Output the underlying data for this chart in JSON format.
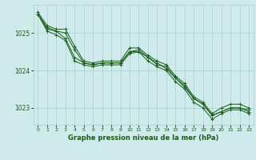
{
  "title": "Graphe pression niveau de la mer (hPa)",
  "background_color": "#ceeaea",
  "grid_color": "#aacece",
  "line_color": "#1a5c1a",
  "xlim": [
    -0.5,
    23.5
  ],
  "ylim": [
    1022.55,
    1025.75
  ],
  "yticks": [
    1023,
    1024,
    1025
  ],
  "xticks": [
    0,
    1,
    2,
    3,
    4,
    5,
    6,
    7,
    8,
    9,
    10,
    11,
    12,
    13,
    14,
    15,
    16,
    17,
    18,
    19,
    20,
    21,
    22,
    23
  ],
  "series": [
    [
      1025.55,
      1025.2,
      1025.1,
      1025.1,
      1024.65,
      1024.25,
      1024.2,
      1024.25,
      1024.25,
      1024.25,
      1024.6,
      1024.6,
      1024.4,
      1024.25,
      1024.15,
      1023.85,
      1023.65,
      1023.3,
      1023.15,
      1022.85,
      1023.0,
      1023.1,
      1023.1,
      1023.0
    ],
    [
      1025.5,
      1025.15,
      1025.05,
      1025.0,
      1024.55,
      1024.2,
      1024.15,
      1024.2,
      1024.2,
      1024.2,
      1024.5,
      1024.55,
      1024.35,
      1024.15,
      1024.1,
      1023.8,
      1023.6,
      1023.25,
      1023.1,
      1022.8,
      1022.9,
      1023.0,
      1023.0,
      1022.95
    ],
    [
      1025.5,
      1025.1,
      1025.05,
      1024.85,
      1024.35,
      1024.2,
      1024.15,
      1024.2,
      1024.2,
      1024.2,
      1024.5,
      1024.5,
      1024.35,
      1024.2,
      1024.05,
      1023.8,
      1023.55,
      1023.25,
      1023.1,
      1022.8,
      1022.9,
      1023.0,
      1023.0,
      1022.9
    ],
    [
      1025.5,
      1025.05,
      1024.95,
      1024.8,
      1024.25,
      1024.15,
      1024.1,
      1024.15,
      1024.15,
      1024.15,
      1024.45,
      1024.5,
      1024.25,
      1024.1,
      1024.0,
      1023.7,
      1023.5,
      1023.15,
      1023.0,
      1022.7,
      1022.85,
      1022.95,
      1022.95,
      1022.85
    ]
  ]
}
